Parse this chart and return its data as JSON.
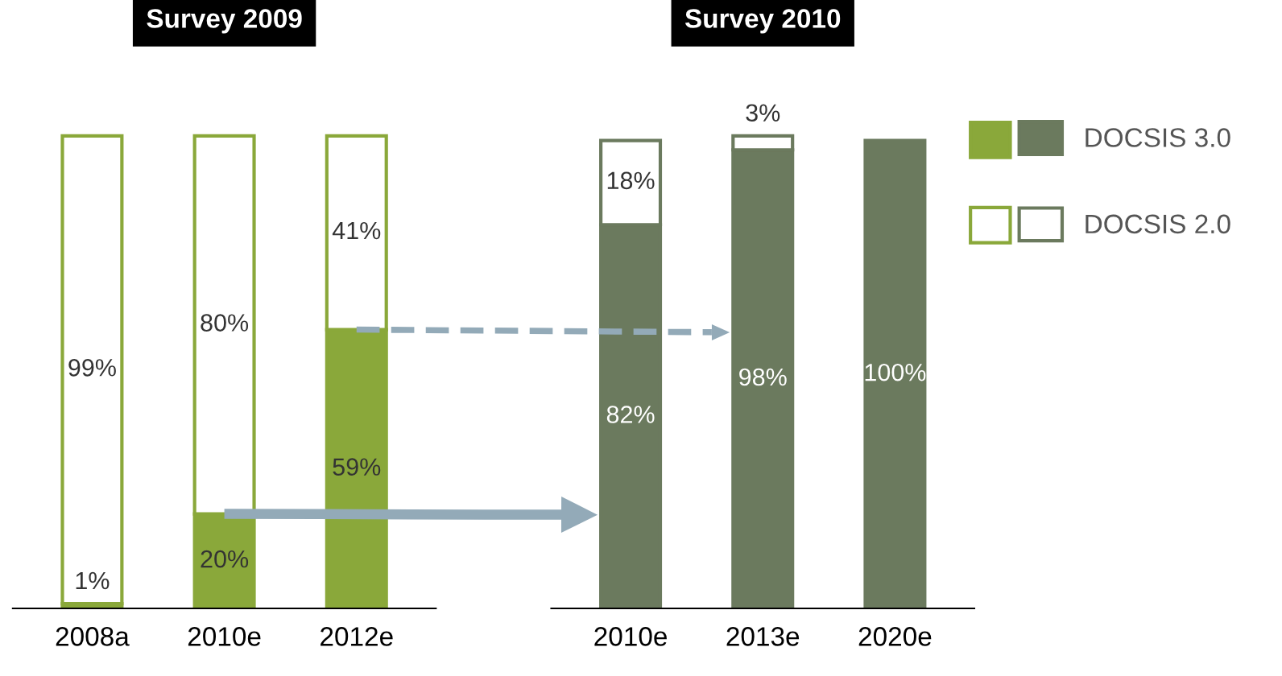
{
  "chart_data": [
    {
      "type": "bar",
      "title": "Survey 2009",
      "categories": [
        "2008a",
        "2010e",
        "2012e"
      ],
      "stacked": true,
      "tick_labels": "x",
      "series": [
        {
          "color": "#8aa83a",
          "values": [
            1,
            20,
            59
          ],
          "value_labels": [
            "1%",
            "20%",
            "59%"
          ]
        },
        {
          "color": "#ffffff",
          "values": [
            99,
            80,
            41
          ],
          "value_labels": [
            "99%",
            "80%",
            "41%"
          ]
        }
      ]
    },
    {
      "type": "bar",
      "title": "Survey 2010",
      "categories": [
        "2010e",
        "2013e",
        "2020e"
      ],
      "stacked": true,
      "tick_labels": "x",
      "legend": "right",
      "series": [
        {
          "name": "DOCSIS 3.0",
          "color": "#6b7a5e",
          "values": [
            82,
            98,
            100
          ],
          "value_labels": [
            "82%",
            "98%",
            "100%"
          ]
        },
        {
          "name": "DOCSIS 2.0",
          "color": "#ffffff",
          "values": [
            18,
            3,
            null
          ],
          "value_labels": [
            "18%",
            "3%",
            null
          ]
        }
      ]
    }
  ]
}
